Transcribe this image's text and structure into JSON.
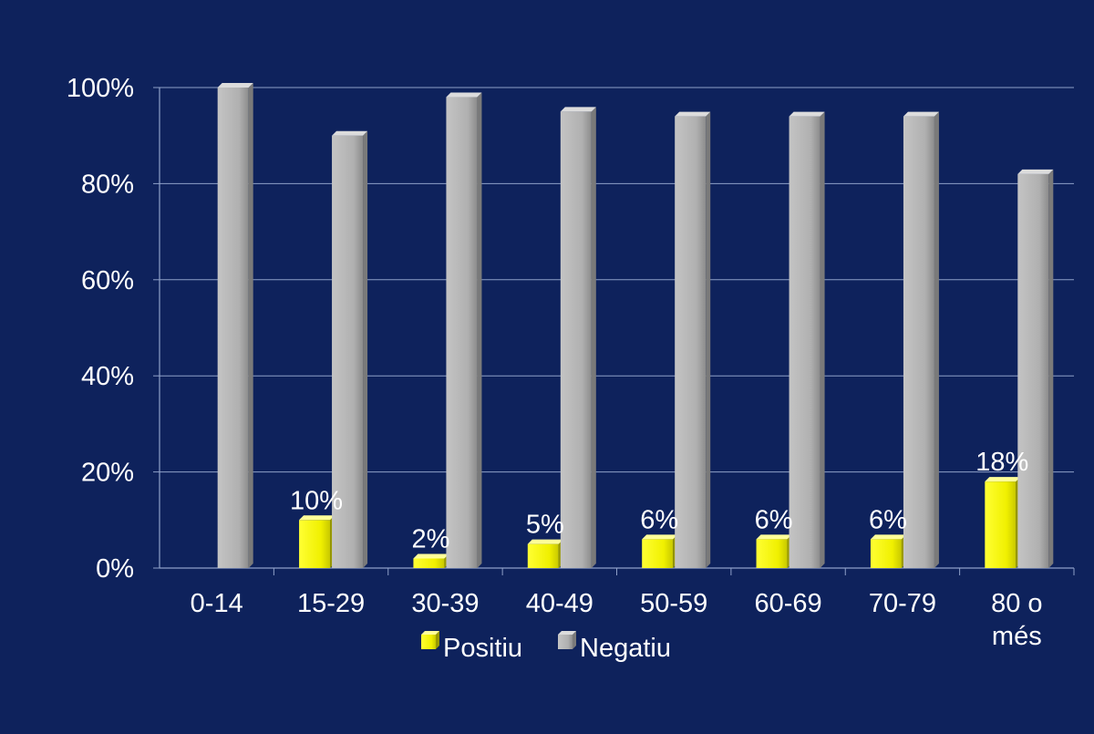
{
  "colors": {
    "background": "#0e225c",
    "positiu": "#ffff00",
    "negatiu": "#b4b4b4",
    "text": "#ffffff",
    "grid": "#8ea0c8"
  },
  "chart_data": {
    "type": "bar",
    "title": "",
    "xlabel": "",
    "ylabel": "",
    "ylim": [
      0,
      100
    ],
    "y_ticks": [
      "0%",
      "20%",
      "40%",
      "60%",
      "80%",
      "100%"
    ],
    "y_tick_values": [
      0,
      20,
      40,
      60,
      80,
      100
    ],
    "categories": [
      "0-14",
      "15-29",
      "30-39",
      "40-49",
      "50-59",
      "60-69",
      "70-79",
      "80 o més"
    ],
    "series": [
      {
        "name": "Positiu",
        "values": [
          0,
          10,
          2,
          5,
          6,
          6,
          6,
          18
        ],
        "labels": [
          "",
          "10%",
          "2%",
          "5%",
          "6%",
          "6%",
          "6%",
          "18%"
        ]
      },
      {
        "name": "Negatiu",
        "values": [
          100,
          90,
          98,
          95,
          94,
          94,
          94,
          82
        ]
      }
    ],
    "grid": true,
    "legend_position": "bottom-center"
  }
}
